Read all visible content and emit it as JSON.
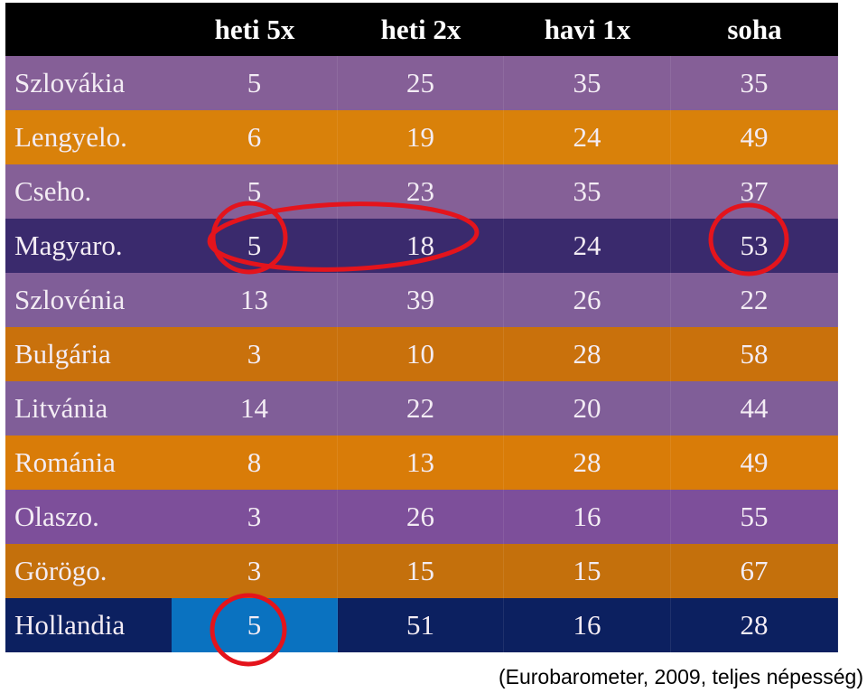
{
  "table": {
    "header": [
      "heti 5x",
      "heti 2x",
      "havi 1x",
      "soha"
    ],
    "rows": [
      {
        "country": "Szlovákia",
        "values": [
          5,
          25,
          35,
          35
        ]
      },
      {
        "country": "Lengyelo.",
        "values": [
          6,
          19,
          24,
          49
        ]
      },
      {
        "country": "Cseho.",
        "values": [
          5,
          23,
          35,
          37
        ]
      },
      {
        "country": "Magyaro.",
        "values": [
          5,
          18,
          24,
          53
        ]
      },
      {
        "country": "Szlovénia",
        "values": [
          13,
          39,
          26,
          22
        ]
      },
      {
        "country": "Bulgária",
        "values": [
          3,
          10,
          28,
          58
        ]
      },
      {
        "country": "Litvánia",
        "values": [
          14,
          22,
          20,
          44
        ]
      },
      {
        "country": "Románia",
        "values": [
          8,
          13,
          28,
          49
        ]
      },
      {
        "country": "Olaszo.",
        "values": [
          3,
          26,
          16,
          55
        ]
      },
      {
        "country": "Görögo.",
        "values": [
          3,
          15,
          15,
          67
        ]
      },
      {
        "country": "Hollandia",
        "values": [
          5,
          51,
          16,
          28
        ]
      }
    ]
  },
  "note": "(Eurobarometer, 2009,  teljes népesség)"
}
